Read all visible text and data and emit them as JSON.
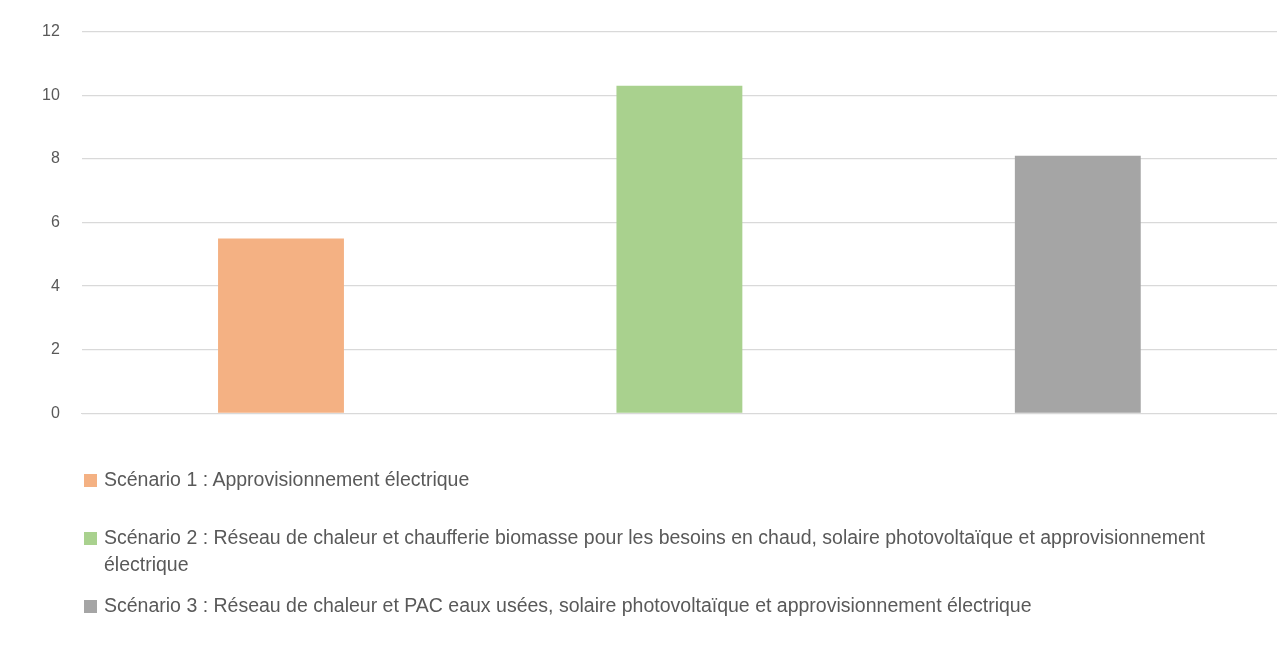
{
  "chart_data": {
    "type": "bar",
    "categories": [
      null,
      null,
      null
    ],
    "series": [
      {
        "name": "Scénario 1 : Approvisionnement électrique",
        "color": "#f4b183",
        "values": [
          5.5,
          null,
          null
        ]
      },
      {
        "name": "Scénario 2 : Réseau de chaleur et chaufferie biomasse pour les besoins en chaud, solaire photovoltaïque et approvisionnement électrique",
        "color": "#a9d18e",
        "values": [
          null,
          10.3,
          null
        ]
      },
      {
        "name": "Scénario 3 : Réseau de chaleur et PAC eaux usées, solaire photovoltaïque et approvisionnement électrique",
        "color": "#a5a5a5",
        "values": [
          null,
          null,
          8.1
        ]
      }
    ],
    "ylim": [
      0,
      12
    ],
    "yticks": [
      0,
      2,
      4,
      6,
      8,
      10,
      12
    ],
    "grid": "y",
    "legend": "bottom"
  }
}
